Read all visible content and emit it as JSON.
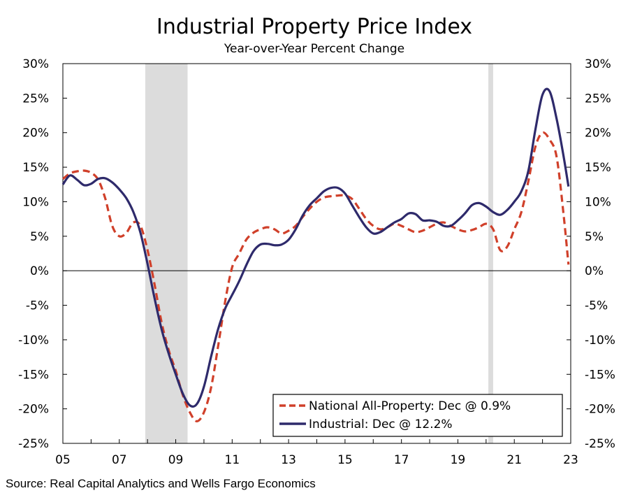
{
  "chart_data": {
    "type": "line",
    "title": "Industrial Property Price Index",
    "subtitle": "Year-over-Year Percent Change",
    "source": "Source: Real Capital Analytics and Wells Fargo Economics",
    "x_range": [
      2005,
      2023
    ],
    "x_ticks": [
      {
        "value": 2005,
        "label": "05"
      },
      {
        "value": 2007,
        "label": "07"
      },
      {
        "value": 2009,
        "label": "09"
      },
      {
        "value": 2011,
        "label": "11"
      },
      {
        "value": 2013,
        "label": "13"
      },
      {
        "value": 2015,
        "label": "15"
      },
      {
        "value": 2017,
        "label": "17"
      },
      {
        "value": 2019,
        "label": "19"
      },
      {
        "value": 2021,
        "label": "21"
      },
      {
        "value": 2023,
        "label": "23"
      }
    ],
    "ylim": [
      -25,
      30
    ],
    "y_ticks": [
      {
        "value": 30,
        "label": "30%"
      },
      {
        "value": 25,
        "label": "25%"
      },
      {
        "value": 20,
        "label": "20%"
      },
      {
        "value": 15,
        "label": "15%"
      },
      {
        "value": 10,
        "label": "10%"
      },
      {
        "value": 5,
        "label": "5%"
      },
      {
        "value": 0,
        "label": "0%"
      },
      {
        "value": -5,
        "label": "-5%"
      },
      {
        "value": -10,
        "label": "-10%"
      },
      {
        "value": -15,
        "label": "-15%"
      },
      {
        "value": -20,
        "label": "-20%"
      },
      {
        "value": -25,
        "label": "-25%"
      }
    ],
    "recessions": [
      {
        "start": 2007.92,
        "end": 2009.42
      },
      {
        "start": 2020.08,
        "end": 2020.25
      }
    ],
    "grid": false,
    "legend_position": "bottom-right",
    "series": [
      {
        "name": "National All-Property: Dec @ 0.9%",
        "color": "#d0402a",
        "style": "dashed",
        "points": [
          [
            2005.0,
            13.3
          ],
          [
            2005.25,
            14.1
          ],
          [
            2005.5,
            14.4
          ],
          [
            2005.75,
            14.5
          ],
          [
            2006.0,
            14.2
          ],
          [
            2006.25,
            13.2
          ],
          [
            2006.5,
            10.5
          ],
          [
            2006.75,
            6.5
          ],
          [
            2007.0,
            5.0
          ],
          [
            2007.25,
            5.5
          ],
          [
            2007.5,
            7.0
          ],
          [
            2007.75,
            6.5
          ],
          [
            2008.0,
            3.0
          ],
          [
            2008.25,
            -2.0
          ],
          [
            2008.5,
            -7.5
          ],
          [
            2008.75,
            -11.5
          ],
          [
            2009.0,
            -14.5
          ],
          [
            2009.25,
            -18.0
          ],
          [
            2009.5,
            -20.5
          ],
          [
            2009.75,
            -21.8
          ],
          [
            2010.0,
            -20.5
          ],
          [
            2010.25,
            -17.0
          ],
          [
            2010.5,
            -11.0
          ],
          [
            2010.75,
            -4.5
          ],
          [
            2011.0,
            0.5
          ],
          [
            2011.25,
            2.5
          ],
          [
            2011.5,
            4.5
          ],
          [
            2011.75,
            5.5
          ],
          [
            2012.0,
            6.0
          ],
          [
            2012.25,
            6.3
          ],
          [
            2012.5,
            6.0
          ],
          [
            2012.75,
            5.4
          ],
          [
            2013.0,
            5.8
          ],
          [
            2013.25,
            6.5
          ],
          [
            2013.5,
            7.8
          ],
          [
            2013.75,
            9.0
          ],
          [
            2014.0,
            10.0
          ],
          [
            2014.25,
            10.6
          ],
          [
            2014.5,
            10.8
          ],
          [
            2014.75,
            10.9
          ],
          [
            2015.0,
            10.9
          ],
          [
            2015.25,
            10.4
          ],
          [
            2015.5,
            9.0
          ],
          [
            2015.75,
            7.5
          ],
          [
            2016.0,
            6.5
          ],
          [
            2016.25,
            6.0
          ],
          [
            2016.5,
            6.3
          ],
          [
            2016.75,
            6.8
          ],
          [
            2017.0,
            6.5
          ],
          [
            2017.25,
            6.0
          ],
          [
            2017.5,
            5.6
          ],
          [
            2017.75,
            5.8
          ],
          [
            2018.0,
            6.3
          ],
          [
            2018.25,
            6.8
          ],
          [
            2018.5,
            7.0
          ],
          [
            2018.75,
            6.5
          ],
          [
            2019.0,
            6.0
          ],
          [
            2019.25,
            5.7
          ],
          [
            2019.5,
            5.9
          ],
          [
            2019.75,
            6.3
          ],
          [
            2020.0,
            6.8
          ],
          [
            2020.25,
            6.0
          ],
          [
            2020.5,
            3.0
          ],
          [
            2020.75,
            3.5
          ],
          [
            2021.0,
            6.0
          ],
          [
            2021.25,
            8.5
          ],
          [
            2021.5,
            13.0
          ],
          [
            2021.75,
            18.0
          ],
          [
            2022.0,
            20.0
          ],
          [
            2022.25,
            19.0
          ],
          [
            2022.5,
            16.5
          ],
          [
            2022.75,
            8.0
          ],
          [
            2022.92,
            0.9
          ]
        ]
      },
      {
        "name": "Industrial: Dec @ 12.2%",
        "color": "#2e2a6b",
        "style": "solid",
        "points": [
          [
            2005.0,
            12.5
          ],
          [
            2005.25,
            13.8
          ],
          [
            2005.5,
            13.2
          ],
          [
            2005.75,
            12.4
          ],
          [
            2006.0,
            12.6
          ],
          [
            2006.25,
            13.3
          ],
          [
            2006.5,
            13.4
          ],
          [
            2006.75,
            12.8
          ],
          [
            2007.0,
            11.8
          ],
          [
            2007.25,
            10.5
          ],
          [
            2007.5,
            8.5
          ],
          [
            2007.75,
            5.5
          ],
          [
            2008.0,
            1.0
          ],
          [
            2008.25,
            -4.0
          ],
          [
            2008.5,
            -8.5
          ],
          [
            2008.75,
            -12.0
          ],
          [
            2009.0,
            -15.0
          ],
          [
            2009.25,
            -17.8
          ],
          [
            2009.5,
            -19.5
          ],
          [
            2009.75,
            -19.3
          ],
          [
            2010.0,
            -16.8
          ],
          [
            2010.25,
            -12.5
          ],
          [
            2010.5,
            -8.5
          ],
          [
            2010.75,
            -5.5
          ],
          [
            2011.0,
            -3.5
          ],
          [
            2011.25,
            -1.5
          ],
          [
            2011.5,
            0.8
          ],
          [
            2011.75,
            2.8
          ],
          [
            2012.0,
            3.8
          ],
          [
            2012.25,
            3.9
          ],
          [
            2012.5,
            3.7
          ],
          [
            2012.75,
            3.8
          ],
          [
            2013.0,
            4.5
          ],
          [
            2013.25,
            6.0
          ],
          [
            2013.5,
            8.0
          ],
          [
            2013.75,
            9.5
          ],
          [
            2014.0,
            10.5
          ],
          [
            2014.25,
            11.5
          ],
          [
            2014.5,
            12.0
          ],
          [
            2014.75,
            12.0
          ],
          [
            2015.0,
            11.2
          ],
          [
            2015.25,
            9.5
          ],
          [
            2015.5,
            7.8
          ],
          [
            2015.75,
            6.3
          ],
          [
            2016.0,
            5.4
          ],
          [
            2016.25,
            5.6
          ],
          [
            2016.5,
            6.3
          ],
          [
            2016.75,
            7.0
          ],
          [
            2017.0,
            7.5
          ],
          [
            2017.25,
            8.3
          ],
          [
            2017.5,
            8.2
          ],
          [
            2017.75,
            7.3
          ],
          [
            2018.0,
            7.3
          ],
          [
            2018.25,
            7.1
          ],
          [
            2018.5,
            6.5
          ],
          [
            2018.75,
            6.5
          ],
          [
            2019.0,
            7.3
          ],
          [
            2019.25,
            8.3
          ],
          [
            2019.5,
            9.5
          ],
          [
            2019.75,
            9.8
          ],
          [
            2020.0,
            9.3
          ],
          [
            2020.25,
            8.5
          ],
          [
            2020.5,
            8.1
          ],
          [
            2020.75,
            8.8
          ],
          [
            2021.0,
            10.0
          ],
          [
            2021.25,
            11.5
          ],
          [
            2021.5,
            14.5
          ],
          [
            2021.75,
            20.5
          ],
          [
            2022.0,
            25.5
          ],
          [
            2022.25,
            26.0
          ],
          [
            2022.5,
            22.0
          ],
          [
            2022.75,
            16.5
          ],
          [
            2022.92,
            12.2
          ]
        ]
      }
    ]
  }
}
